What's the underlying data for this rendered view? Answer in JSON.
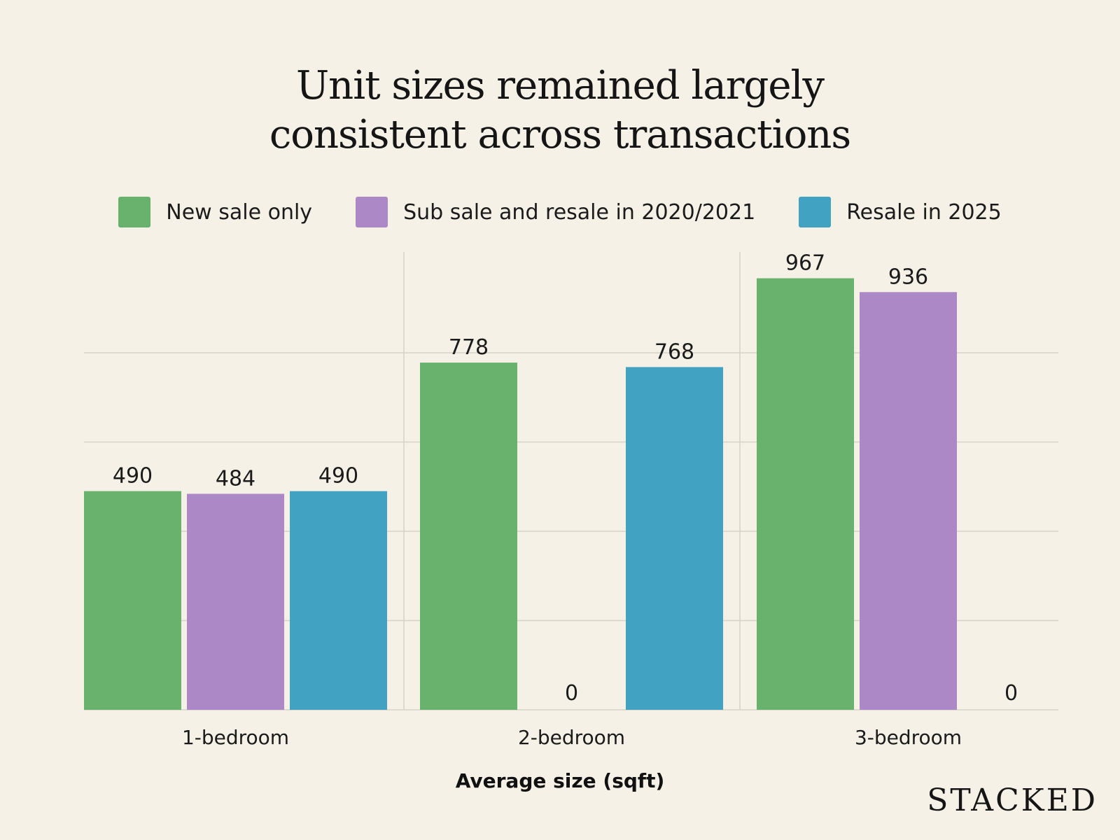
{
  "chart_data": {
    "type": "bar",
    "title_lines": [
      "Unit sizes remained largely",
      "consistent across transactions"
    ],
    "categories": [
      "1-bedroom",
      "2-bedroom",
      "3-bedroom"
    ],
    "series": [
      {
        "name": "New sale only",
        "color": "#69b26d",
        "values": [
          490,
          778,
          967
        ]
      },
      {
        "name": "Sub sale and resale in 2020/2021",
        "color": "#ad88c6",
        "values": [
          484,
          0,
          936
        ]
      },
      {
        "name": "Resale in 2025",
        "color": "#41a2c1",
        "values": [
          490,
          768,
          0
        ]
      }
    ],
    "xlabel": "Average size (sqft)",
    "ylabel": "",
    "ylim": [
      0,
      1000
    ],
    "grid": true,
    "legend_position": "top"
  },
  "brand": "STACKED"
}
